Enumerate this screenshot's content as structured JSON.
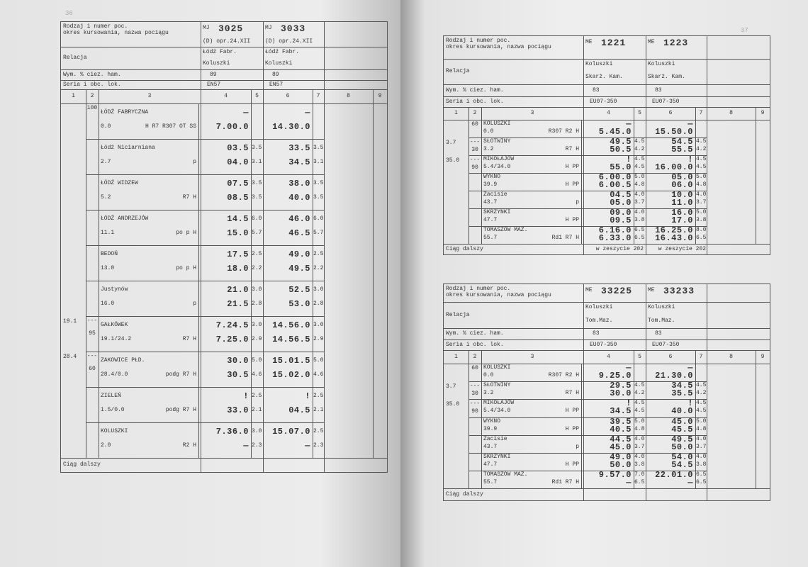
{
  "pages": [
    {
      "page_number": "36",
      "tables": [
        {
          "header_label": [
            "Rodzaj i numer poc.",
            "okres kursowania, nazwa pociągu"
          ],
          "relation_label": "Relacja",
          "brake_label": "Wym. % ciez. ham.",
          "loco_label": "Seria i obc. lok.",
          "column_numbers": [
            "1",
            "2",
            "3",
            "4",
            "5",
            "6",
            "7",
            "8",
            "9"
          ],
          "trains": [
            {
              "kind": "MJ",
              "number": "3025",
              "note": "(D) opr.24.XII",
              "relation": [
                "Łódź Fabr.",
                "Koluszki"
              ],
              "brake": "89",
              "loco": "EN57"
            },
            {
              "kind": "MJ",
              "number": "3033",
              "note": "(D) opr.24.XII",
              "relation": [
                "Łódź Fabr.",
                "Koluszki"
              ],
              "brake": "89",
              "loco": "EN57"
            }
          ],
          "stations": [
            {
              "c2": [
                "100"
              ],
              "name": "ŁÓDŹ FABRYCZNA",
              "km": "0.0",
              "notes": "H R7 R307 OT SS",
              "times": [
                {
                  "arr": "—",
                  "dep": "7.00.0"
                },
                {
                  "arr": "—",
                  "dep": "14.30.0"
                }
              ]
            },
            {
              "name": "Łódź Niciarniana",
              "km": "2.7",
              "notes": "p",
              "times": [
                {
                  "arr": "03.5",
                  "arr5": "3.5",
                  "dep": "04.0",
                  "dep5": "3.1"
                },
                {
                  "arr": "33.5",
                  "arr5": "3.5",
                  "dep": "34.5",
                  "dep5": "3.1"
                }
              ]
            },
            {
              "name": "ŁÓDŹ WIDZEW",
              "km": "5.2",
              "notes": "R7 H",
              "times": [
                {
                  "arr": "07.5",
                  "arr5": "3.5",
                  "dep": "08.5",
                  "dep5": "3.5"
                },
                {
                  "arr": "38.0",
                  "arr5": "3.5",
                  "dep": "40.0",
                  "dep5": "3.5"
                }
              ]
            },
            {
              "name": "ŁÓDŹ ANDRZEJÓW",
              "km": "11.1",
              "notes": "po p H",
              "times": [
                {
                  "arr": "14.5",
                  "arr5": "6.0",
                  "dep": "15.0",
                  "dep5": "5.7"
                },
                {
                  "arr": "46.0",
                  "arr5": "6.0",
                  "dep": "46.5",
                  "dep5": "5.7"
                }
              ]
            },
            {
              "name": "BEDOŃ",
              "km": "13.0",
              "notes": "po p H",
              "times": [
                {
                  "arr": "17.5",
                  "arr5": "2.5",
                  "dep": "18.0",
                  "dep5": "2.2"
                },
                {
                  "arr": "49.0",
                  "arr5": "2.5",
                  "dep": "49.5",
                  "dep5": "2.2"
                }
              ]
            },
            {
              "name": "Justynów",
              "km": "16.0",
              "notes": "p",
              "times": [
                {
                  "arr": "21.0",
                  "arr5": "3.0",
                  "dep": "21.5",
                  "dep5": "2.8"
                },
                {
                  "arr": "52.5",
                  "arr5": "3.0",
                  "dep": "53.0",
                  "dep5": "2.8"
                }
              ]
            },
            {
              "c1": "19.1",
              "c2": [
                "---",
                "95"
              ],
              "name": "GAŁKÓWEK",
              "km": "19.1/24.2",
              "notes": "R7 H",
              "times": [
                {
                  "arr": "7.24.5",
                  "arr5": "3.0",
                  "dep": "7.25.0",
                  "dep5": "2.9"
                },
                {
                  "arr": "14.56.0",
                  "arr5": "3.0",
                  "dep": "14.56.5",
                  "dep5": "2.9"
                }
              ]
            },
            {
              "c1": "28.4",
              "c2": [
                "---",
                "60"
              ],
              "name": "ZAKOWICE PŁD.",
              "km": "28.4/0.0",
              "notes": "podg R7 H",
              "times": [
                {
                  "arr": "30.0",
                  "arr5": "5.0",
                  "dep": "30.5",
                  "dep5": "4.6"
                },
                {
                  "arr": "15.01.5",
                  "arr5": "5.0",
                  "dep": "15.02.0",
                  "dep5": "4.6"
                }
              ]
            },
            {
              "name": "ZIELEŃ",
              "km": "1.5/0.0",
              "notes": "podg R7 H",
              "times": [
                {
                  "arr": "!",
                  "arr5": "2.5",
                  "dep": "33.0",
                  "dep5": "2.1"
                },
                {
                  "arr": "!",
                  "arr5": "2.5",
                  "dep": "04.5",
                  "dep5": "2.1"
                }
              ]
            },
            {
              "name": "KOLUSZKI",
              "km": "2.0",
              "notes": "R2 H",
              "times": [
                {
                  "arr": "7.36.0",
                  "arr5": "3.0",
                  "dep": "—",
                  "dep5": "2.3"
                },
                {
                  "arr": "15.07.0",
                  "arr5": "2.5",
                  "dep": "—",
                  "dep5": "2.3"
                }
              ]
            }
          ],
          "footer": "Ciąg dalszy"
        }
      ]
    },
    {
      "page_number": "37",
      "tables": [
        {
          "header_label": [
            "Rodzaj i numer poc.",
            "okres kursowania, nazwa pociągu"
          ],
          "relation_label": "Relacja",
          "brake_label": "Wym. % ciez. ham.",
          "loco_label": "Seria i obc. lok.",
          "column_numbers": [
            "1",
            "2",
            "3",
            "4",
            "5",
            "6",
            "7",
            "8",
            "9"
          ],
          "trains": [
            {
              "kind": "ME",
              "number": "1221",
              "relation": [
                "Koluszki",
                "Skarż. Kam."
              ],
              "brake": "83",
              "loco": "EU07-350",
              "continuation": "w zeszycie 202"
            },
            {
              "kind": "ME",
              "number": "1223",
              "relation": [
                "Koluszki",
                "Skarż. Kam."
              ],
              "brake": "83",
              "loco": "EU07-350",
              "continuation": "w zeszycie 202"
            }
          ],
          "stations": [
            {
              "c2": [
                "60"
              ],
              "name": "KOLUSZKI",
              "km": "0.0",
              "notes": "R307 R2 H",
              "times": [
                {
                  "arr": "—",
                  "dep": "5.45.0"
                },
                {
                  "arr": "—",
                  "dep": "15.50.0"
                }
              ]
            },
            {
              "c1": "3.7",
              "c2": [
                "---",
                "30"
              ],
              "name": "SŁOTWINY",
              "km": "3.2",
              "notes": "R7 H",
              "times": [
                {
                  "arr": "49.5",
                  "arr5": "4.5",
                  "dep": "50.5",
                  "dep5": "4.2"
                },
                {
                  "arr": "54.5",
                  "arr5": "4.5",
                  "dep": "55.5",
                  "dep5": "4.2"
                }
              ]
            },
            {
              "c1": "35.0",
              "c2": [
                "---",
                "90"
              ],
              "name": "MIKOŁAJÓW",
              "km": "5.4/34.0",
              "notes": "H PP",
              "times": [
                {
                  "arr": "!",
                  "arr5": "4.5",
                  "dep": "55.0",
                  "dep5": "4.5"
                },
                {
                  "arr": "!",
                  "arr5": "4.5",
                  "dep": "16.00.0",
                  "dep5": "4.5"
                }
              ]
            },
            {
              "name": "WYKNO",
              "km": "39.9",
              "notes": "H PP",
              "times": [
                {
                  "arr": "6.00.0",
                  "arr5": "5.0",
                  "dep": "6.00.5",
                  "dep5": "4.8"
                },
                {
                  "arr": "05.0",
                  "arr5": "5.0",
                  "dep": "06.0",
                  "dep5": "4.8"
                }
              ]
            },
            {
              "name": "Zacisie",
              "km": "43.7",
              "notes": "p",
              "times": [
                {
                  "arr": "04.5",
                  "arr5": "4.0",
                  "dep": "05.0",
                  "dep5": "3.7"
                },
                {
                  "arr": "10.0",
                  "arr5": "4.0",
                  "dep": "11.0",
                  "dep5": "3.7"
                }
              ]
            },
            {
              "name": "SKRZYNKI",
              "km": "47.7",
              "notes": "H PP",
              "times": [
                {
                  "arr": "09.0",
                  "arr5": "4.0",
                  "dep": "09.5",
                  "dep5": "3.8"
                },
                {
                  "arr": "16.0",
                  "arr5": "5.0",
                  "dep": "17.0",
                  "dep5": "3.8"
                }
              ]
            },
            {
              "name": "TOMASZÓW MAZ.",
              "km": "55.7",
              "notes": "Rd1 R7 H",
              "times": [
                {
                  "arr": "6.16.0",
                  "arr5": "6.5",
                  "dep": "6.33.0",
                  "dep5": "6.5"
                },
                {
                  "arr": "16.25.0",
                  "arr5": "8.0",
                  "dep": "16.43.0",
                  "dep5": "6.5"
                }
              ]
            }
          ],
          "footer": "Ciąg dalszy"
        },
        {
          "header_label": [
            "Rodzaj i numer poc.",
            "okres kursowania, nazwa pociągu"
          ],
          "relation_label": "Relacja",
          "brake_label": "Wym. % ciez. ham.",
          "loco_label": "Seria i obc. lok.",
          "column_numbers": [
            "1",
            "2",
            "3",
            "4",
            "5",
            "6",
            "7",
            "8",
            "9"
          ],
          "trains": [
            {
              "kind": "ME",
              "number": "33225",
              "relation": [
                "Koluszki",
                "Tom.Maz."
              ],
              "brake": "83",
              "loco": "EU07-350"
            },
            {
              "kind": "ME",
              "number": "33233",
              "relation": [
                "Koluszki",
                "Tom.Maz."
              ],
              "brake": "83",
              "loco": "EU07-350"
            }
          ],
          "stations": [
            {
              "c2": [
                "60"
              ],
              "name": "KOLUSZKI",
              "km": "0.0",
              "notes": "R307 R2 H",
              "times": [
                {
                  "arr": "—",
                  "dep": "9.25.0"
                },
                {
                  "arr": "—",
                  "dep": "21.30.0"
                }
              ]
            },
            {
              "c1": "3.7",
              "c2": [
                "---",
                "30"
              ],
              "name": "SŁOTWINY",
              "km": "3.2",
              "notes": "R7 H",
              "times": [
                {
                  "arr": "29.5",
                  "arr5": "4.5",
                  "dep": "30.0",
                  "dep5": "4.2"
                },
                {
                  "arr": "34.5",
                  "arr5": "4.5",
                  "dep": "35.5",
                  "dep5": "4.2"
                }
              ]
            },
            {
              "c1": "35.0",
              "c2": [
                "---",
                "90"
              ],
              "name": "MIKOŁAJÓW",
              "km": "5.4/34.0",
              "notes": "H PP",
              "times": [
                {
                  "arr": "!",
                  "arr5": "4.5",
                  "dep": "34.5",
                  "dep5": "4.5"
                },
                {
                  "arr": "!",
                  "arr5": "4.5",
                  "dep": "40.0",
                  "dep5": "4.5"
                }
              ]
            },
            {
              "name": "WYKNO",
              "km": "39.9",
              "notes": "H PP",
              "times": [
                {
                  "arr": "39.5",
                  "arr5": "5.0",
                  "dep": "40.5",
                  "dep5": "4.8"
                },
                {
                  "arr": "45.0",
                  "arr5": "5.0",
                  "dep": "45.5",
                  "dep5": "4.8"
                }
              ]
            },
            {
              "name": "Zacisie",
              "km": "43.7",
              "notes": "p",
              "times": [
                {
                  "arr": "44.5",
                  "arr5": "4.0",
                  "dep": "45.0",
                  "dep5": "3.7"
                },
                {
                  "arr": "49.5",
                  "arr5": "4.0",
                  "dep": "50.0",
                  "dep5": "3.7"
                }
              ]
            },
            {
              "name": "SKRZYNKI",
              "km": "47.7",
              "notes": "H PP",
              "times": [
                {
                  "arr": "49.0",
                  "arr5": "4.0",
                  "dep": "50.0",
                  "dep5": "3.8"
                },
                {
                  "arr": "54.0",
                  "arr5": "4.0",
                  "dep": "54.5",
                  "dep5": "3.8"
                }
              ]
            },
            {
              "name": "TOMASZÓW MAZ.",
              "km": "55.7",
              "notes": "Rd1 R7 H",
              "times": [
                {
                  "arr": "9.57.0",
                  "arr5": "7.0",
                  "dep": "—",
                  "dep5": "6.5"
                },
                {
                  "arr": "22.01.0",
                  "arr5": "6.5",
                  "dep": "—",
                  "dep5": "6.5"
                }
              ]
            }
          ],
          "footer": "Ciąg dalszy"
        }
      ]
    }
  ]
}
